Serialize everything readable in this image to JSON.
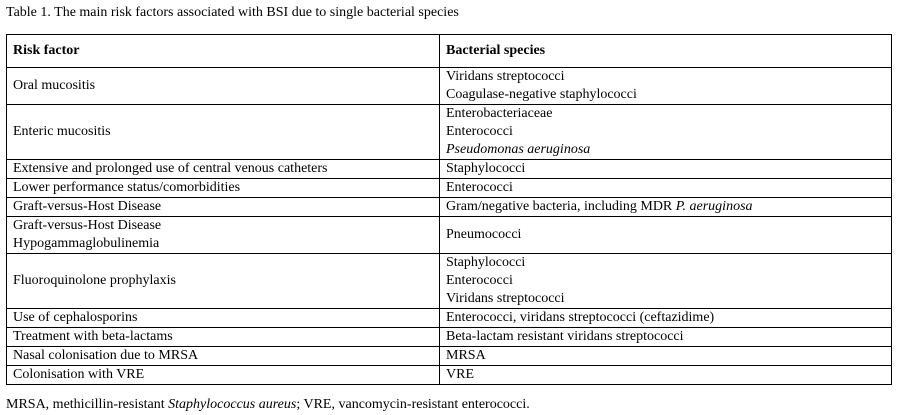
{
  "caption": "Table 1. The main risk factors associated with BSI due to single bacterial species",
  "table": {
    "headers": [
      "Risk factor",
      "Bacterial species"
    ],
    "rows": [
      {
        "risk": [
          "Oral mucositis"
        ],
        "species": [
          [
            "Viridans streptococci"
          ],
          [
            "Coagulase-negative staphylococci"
          ]
        ]
      },
      {
        "risk": [
          "Enteric mucositis"
        ],
        "species": [
          [
            "Enterobacteriaceae"
          ],
          [
            "Enterococci"
          ],
          [
            "",
            "Pseudomonas aeruginosa"
          ]
        ]
      },
      {
        "risk": [
          "Extensive and prolonged use of central venous catheters"
        ],
        "species": [
          [
            "Staphylococci"
          ]
        ]
      },
      {
        "risk": [
          "Lower performance status/comorbidities"
        ],
        "species": [
          [
            "Enterococci"
          ]
        ]
      },
      {
        "risk": [
          "Graft-versus-Host Disease"
        ],
        "species": [
          [
            "Gram/negative bacteria, including MDR ",
            "P. aeruginosa"
          ]
        ]
      },
      {
        "risk": [
          "Graft-versus-Host Disease",
          "Hypogammaglobulinemia"
        ],
        "species": [
          [
            "Pneumococci"
          ]
        ]
      },
      {
        "risk": [
          "Fluoroquinolone prophylaxis"
        ],
        "species": [
          [
            "Staphylococci"
          ],
          [
            "Enterococci"
          ],
          [
            "Viridans streptococci"
          ]
        ]
      },
      {
        "risk": [
          "Use of cephalosporins"
        ],
        "species": [
          [
            "Enterococci, viridans streptococci (ceftazidime)"
          ]
        ]
      },
      {
        "risk": [
          "Treatment with beta-lactams"
        ],
        "species": [
          [
            "Beta-lactam resistant viridans streptococci"
          ]
        ]
      },
      {
        "risk": [
          "Nasal colonisation due to MRSA"
        ],
        "species": [
          [
            "MRSA"
          ]
        ]
      },
      {
        "risk": [
          "Colonisation with VRE"
        ],
        "species": [
          [
            "VRE"
          ]
        ]
      }
    ]
  },
  "footnote": {
    "before": "MRSA, methicillin-resistant ",
    "italic": "Staphylococcus aureus",
    "after": "; VRE, vancomycin-resistant enterococci."
  }
}
